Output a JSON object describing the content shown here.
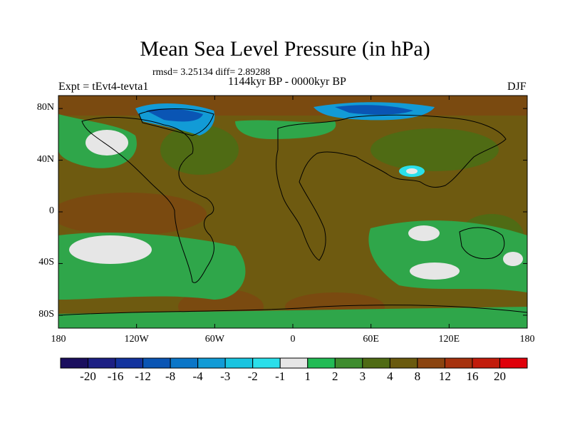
{
  "title": "Mean Sea Level Pressure (in hPa)",
  "stats": "rmsd= 3.25134 diff= 2.89288",
  "period": "1144kyr BP - 0000kyr BP",
  "experiment": "Expt = tEvt4-tevta1",
  "season": "DJF",
  "axes": {
    "lon_ticks": [
      "180",
      "120W",
      "60W",
      "0",
      "60E",
      "120E",
      "180"
    ],
    "lat_ticks": [
      "80N",
      "40N",
      "0",
      "40S",
      "80S"
    ]
  },
  "colorbar": {
    "levels": [
      "-20",
      "-16",
      "-12",
      "-8",
      "-4",
      "-3",
      "-2",
      "-1",
      "1",
      "2",
      "3",
      "4",
      "8",
      "12",
      "16",
      "20"
    ],
    "colors": [
      "#1a0e5e",
      "#1c1f84",
      "#13339e",
      "#0a55b4",
      "#0b76c8",
      "#129bd6",
      "#19c4e0",
      "#2bdfea",
      "#e6e6e6",
      "#22bb55",
      "#3e8c2e",
      "#4f6b14",
      "#6a5a0e",
      "#8b4410",
      "#a6320e",
      "#c21c0c",
      "#e0000a"
    ]
  },
  "colors": {
    "land_outline": "#000000",
    "background_field": "#6e5a10"
  }
}
